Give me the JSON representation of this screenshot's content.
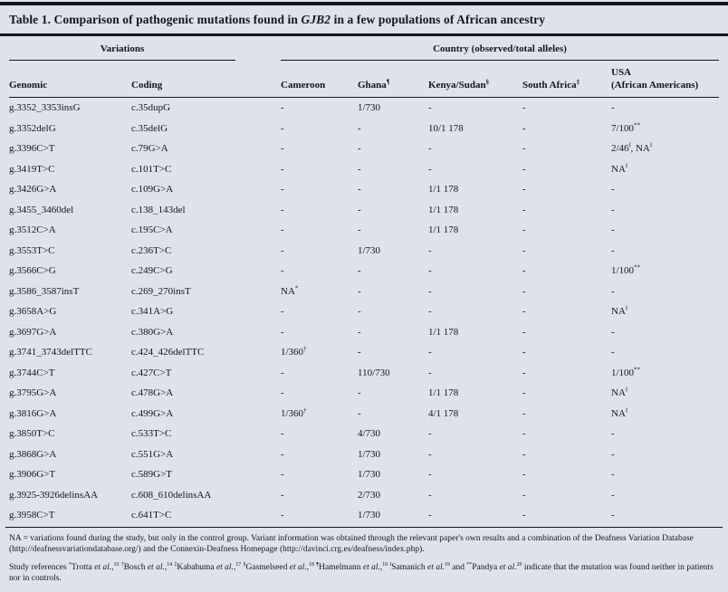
{
  "colors": {
    "background": "#dde2ed",
    "ink": "#15151e"
  },
  "title": "Table 1. Comparison of pathogenic mutations found in ~GJB2~ in a few populations of African ancestry",
  "table": {
    "group_headers": [
      {
        "label": "Variations",
        "span": 2
      },
      {
        "label": "Country (observed/total alleles)",
        "span": 5
      }
    ],
    "columns": [
      "Genomic",
      "Coding",
      "Cameroon",
      "Ghana^¶^",
      "Kenya/Sudan^§^",
      "South Africa^‡^",
      "USA\n(African Americans)"
    ],
    "rows": [
      [
        "g.3352_3353insG",
        "c.35dupG",
        "-",
        "1/730",
        "-",
        "-",
        "-"
      ],
      [
        "g.3352delG",
        "c.35delG",
        "-",
        "-",
        "10/1 178",
        "-",
        "7/100^**^"
      ],
      [
        "g.3396C>T",
        "c.79G>A",
        "-",
        "-",
        "-",
        "-",
        "2/46^‖^, NA^‖^"
      ],
      [
        "g.3419T>C",
        "c.101T>C",
        "-",
        "-",
        "-",
        "-",
        "NA^‖^"
      ],
      [
        "g.3426G>A",
        "c.109G>A",
        "-",
        "-",
        "1/1 178",
        "-",
        "-"
      ],
      [
        "g.3455_3460del",
        "c.138_143del",
        "-",
        "-",
        "1/1 178",
        "-",
        "-"
      ],
      [
        "g.3512C>A",
        "c.195C>A",
        "-",
        "-",
        "1/1 178",
        "-",
        "-"
      ],
      [
        "g.3553T>C",
        "c.236T>C",
        "-",
        "1/730",
        "-",
        "-",
        "-"
      ],
      [
        "g.3566C>G",
        "c.249C>G",
        "-",
        "-",
        "-",
        "-",
        "1/100^**^"
      ],
      [
        "g.3586_3587insT",
        "c.269_270insT",
        "NA^*^",
        "-",
        "-",
        "-",
        "-"
      ],
      [
        "g.3658A>G",
        "c.341A>G",
        "-",
        "-",
        "-",
        "-",
        "NA^‖^"
      ],
      [
        "g.3697G>A",
        "c.380G>A",
        "-",
        "-",
        "1/1 178",
        "-",
        "-"
      ],
      [
        "g.3741_3743delTTC",
        "c.424_426delTTC",
        "1/360^†^",
        "-",
        "-",
        "-",
        "-"
      ],
      [
        "g.3744C>T",
        "c.427C>T",
        "-",
        "110/730",
        "-",
        "-",
        "1/100^**^"
      ],
      [
        "g.3795G>A",
        "c.478G>A",
        "-",
        "-",
        "1/1 178",
        "-",
        "NA^‖^"
      ],
      [
        "g.3816G>A",
        "c.499G>A",
        "1/360^†^",
        "-",
        "4/1 178",
        "-",
        "NA^‖^"
      ],
      [
        "g.3850T>C",
        "c.533T>C",
        "-",
        "4/730",
        "-",
        "-",
        "-"
      ],
      [
        "g.3868G>A",
        "c.551G>A",
        "-",
        "1/730",
        "-",
        "-",
        "-"
      ],
      [
        "g.3906G>T",
        "c.589G>T",
        "-",
        "1/730",
        "-",
        "-",
        "-"
      ],
      [
        "g.3925-3926delinsAA",
        "c.608_610delinsAA",
        "-",
        "2/730",
        "-",
        "-",
        "-"
      ],
      [
        "g.3958C>T",
        "c.641T>C",
        "-",
        "1/730",
        "-",
        "-",
        "-"
      ]
    ]
  },
  "footnotes": [
    "NA = variations found during the study, but only in the control group. Variant information was obtained through the relevant paper's own results and a combination of the Deafness Variation Database (http://deafnessvariationdatabase.org/) and the Connexin-Deafness Homepage (http://davinci.crg.es/deafness/index.php).",
    "Study references ^*^Trotta ~et al.~,^16^ ^†^Bosch ~et al.~,^14^ ^‡^Kabahuma ~et al.~,^17^ ^§^Gasmelseed ~et al.~,^18^ ^¶^Hamelmann ~et al.~,^10^ ^‖^Samanich ~et al.~^19^ and ^**^Pandya ~et al.~^20^ indicate that the mutation was found neither in patients nor in controls."
  ]
}
